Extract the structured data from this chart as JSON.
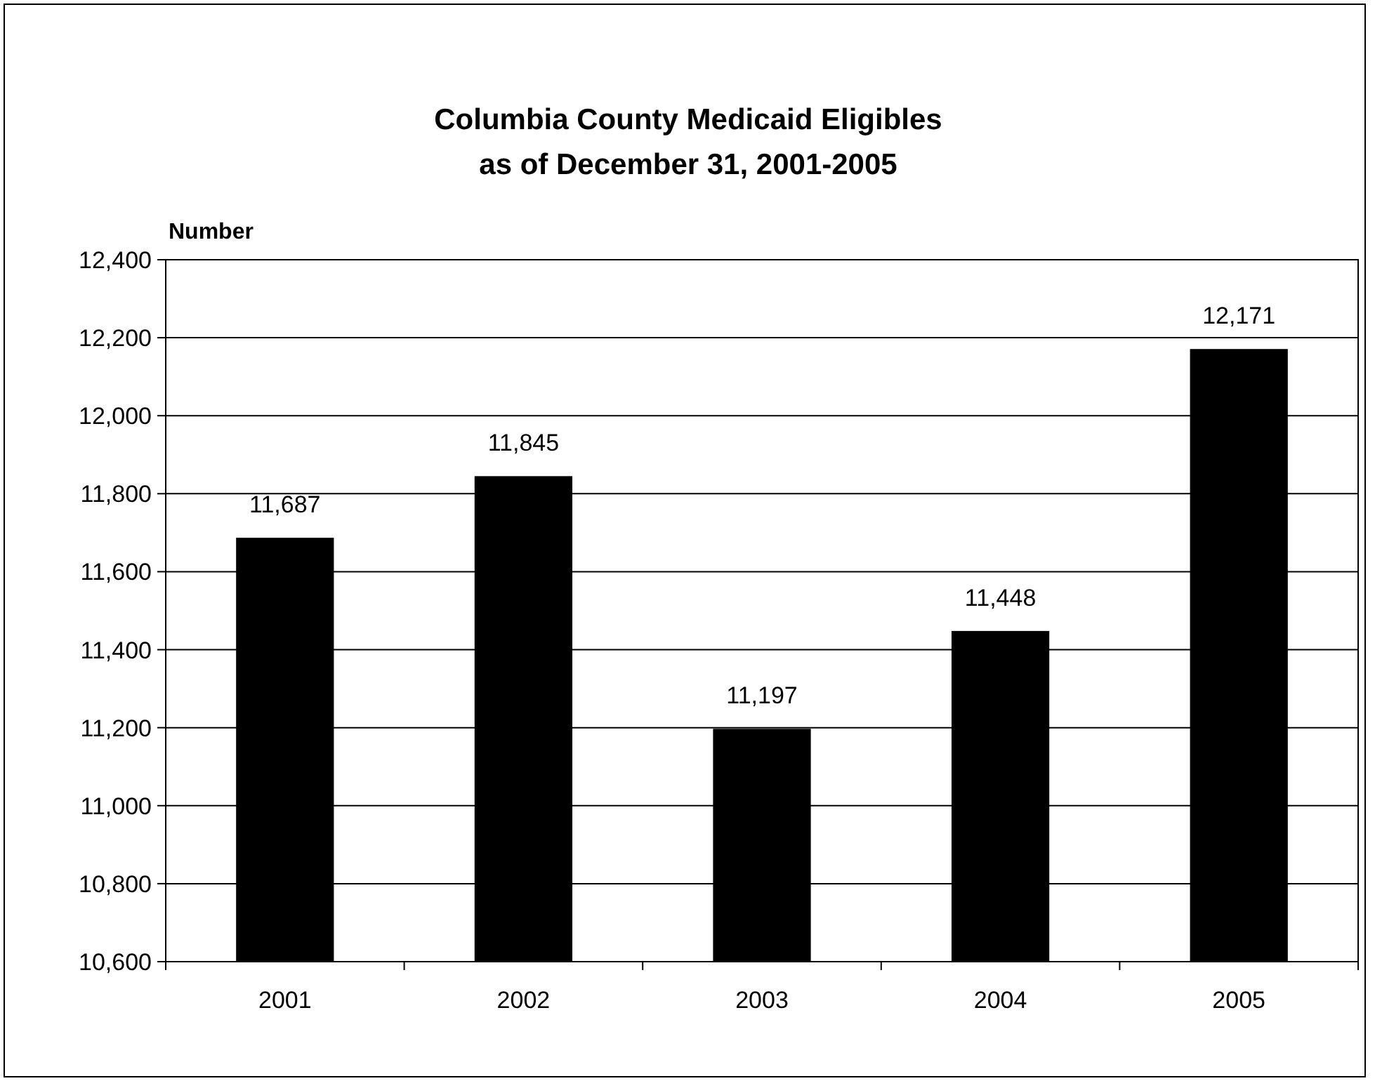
{
  "chart_data": {
    "type": "bar",
    "title": "Columbia County Medicaid Eligibles\nas of December 31, 2001-2005",
    "ylabel": "Number",
    "categories": [
      "2001",
      "2002",
      "2003",
      "2004",
      "2005"
    ],
    "values": [
      11687,
      11845,
      11197,
      11448,
      12171
    ],
    "color": "#000000",
    "value_labels": [
      "11,687",
      "11,845",
      "11,197",
      "11,448",
      "12,171"
    ],
    "ylim": [
      10600,
      12400
    ],
    "yticks": [
      {
        "value": 10600,
        "label": "10,600"
      },
      {
        "value": 10800,
        "label": "10,800"
      },
      {
        "value": 11000,
        "label": "11,000"
      },
      {
        "value": 11200,
        "label": "11,200"
      },
      {
        "value": 11400,
        "label": "11,400"
      },
      {
        "value": 11600,
        "label": "11,600"
      },
      {
        "value": 11800,
        "label": "11,800"
      },
      {
        "value": 12000,
        "label": "12,000"
      },
      {
        "value": 12200,
        "label": "12,200"
      },
      {
        "value": 12400,
        "label": "12,400"
      }
    ],
    "grid": "y"
  }
}
